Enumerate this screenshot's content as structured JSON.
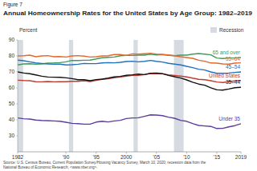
{
  "chart_data": {
    "type": "line",
    "figure_label": "Figure 7",
    "title": "Annual Homeownership Rates for the United States by Age Group: 1982–2019",
    "y_label": "Percent",
    "recession_label": "Recession",
    "recessions": [
      [
        1982,
        1982.9
      ],
      [
        1990.5,
        1991.2
      ],
      [
        2001.2,
        2001.9
      ],
      [
        2007.9,
        2009.5
      ]
    ],
    "source": [
      "Source: U.S. Census Bureau, Current Population Survey/Housing Vacancy Survey, March 10, 2020; recession data from the",
      "National Bureau of Economic Research, <www.nber.org>."
    ],
    "x": [
      1982,
      1983,
      1984,
      1985,
      1986,
      1987,
      1988,
      1989,
      1990,
      1991,
      1992,
      1993,
      1994,
      1995,
      1996,
      1997,
      1998,
      1999,
      2000,
      2001,
      2002,
      2003,
      2004,
      2005,
      2006,
      2007,
      2008,
      2009,
      2010,
      2011,
      2012,
      2013,
      2014,
      2015,
      2016,
      2017,
      2018,
      2019
    ],
    "xlim": [
      1982,
      2019
    ],
    "xticks": [
      1982,
      {
        "value": 1990,
        "label": "'90"
      },
      {
        "value": 1995,
        "label": "'95"
      },
      2000,
      {
        "value": 2005,
        "label": "'05"
      },
      {
        "value": 2010,
        "label": "'10"
      },
      {
        "value": 2015,
        "label": "'15"
      },
      2019
    ],
    "ylim": [
      20,
      90
    ],
    "yticks": [
      30,
      40,
      50,
      60,
      70,
      80,
      90
    ],
    "grid": false,
    "series": [
      {
        "name": "65 and over",
        "color": "#3d9a5c",
        "values": [
          74.4,
          75.0,
          75.1,
          74.8,
          75.0,
          75.5,
          75.6,
          75.8,
          76.3,
          77.2,
          77.1,
          77.3,
          77.4,
          78.1,
          78.9,
          79.1,
          79.3,
          80.1,
          80.4,
          80.3,
          80.5,
          80.5,
          81.1,
          80.6,
          80.9,
          80.4,
          80.1,
          80.5,
          80.5,
          81.1,
          81.5,
          81.1,
          80.7,
          78.7,
          78.4,
          78.7,
          78.7,
          79.0
        ]
      },
      {
        "name": "55–64",
        "color": "#e2692c",
        "values": [
          80.0,
          80.1,
          80.5,
          79.5,
          80.0,
          80.2,
          79.5,
          79.6,
          79.3,
          80.0,
          80.2,
          79.9,
          79.3,
          79.5,
          80.0,
          80.1,
          80.9,
          80.9,
          80.3,
          81.3,
          81.1,
          81.4,
          81.7,
          81.2,
          80.9,
          80.6,
          80.1,
          79.5,
          79.0,
          78.5,
          77.3,
          76.7,
          75.6,
          75.5,
          75.0,
          74.9,
          75.5,
          75.7
        ]
      },
      {
        "name": "45–54",
        "color": "#1f6fbf",
        "values": [
          77.4,
          77.0,
          76.3,
          75.6,
          75.3,
          75.0,
          74.8,
          74.9,
          74.4,
          74.5,
          74.8,
          75.3,
          75.2,
          75.2,
          75.6,
          75.8,
          75.7,
          76.0,
          76.5,
          76.7,
          76.3,
          76.6,
          77.2,
          76.6,
          76.2,
          75.4,
          74.9,
          74.4,
          73.5,
          72.7,
          71.7,
          71.2,
          70.0,
          69.1,
          69.1,
          69.3,
          69.7,
          70.0
        ]
      },
      {
        "name": "United States",
        "color": "#c23a2f",
        "values": [
          64.8,
          64.6,
          64.5,
          63.9,
          63.8,
          64.0,
          63.8,
          63.9,
          63.9,
          64.1,
          64.1,
          64.5,
          64.0,
          64.7,
          65.4,
          65.7,
          66.3,
          66.8,
          67.4,
          67.8,
          67.9,
          68.3,
          69.0,
          68.9,
          68.8,
          68.1,
          67.8,
          67.4,
          66.9,
          66.1,
          65.4,
          65.1,
          64.5,
          63.7,
          63.4,
          63.9,
          64.4,
          64.6
        ]
      },
      {
        "name": "35–44",
        "color": "#111111",
        "values": [
          70.0,
          69.3,
          68.9,
          68.1,
          67.3,
          66.8,
          66.7,
          66.6,
          66.3,
          65.8,
          65.1,
          65.1,
          64.5,
          65.2,
          65.5,
          66.1,
          66.9,
          67.2,
          67.9,
          68.2,
          68.6,
          68.3,
          69.2,
          69.3,
          68.9,
          67.8,
          67.0,
          66.2,
          65.0,
          63.6,
          62.4,
          61.7,
          60.1,
          58.8,
          58.6,
          59.3,
          60.1,
          60.4
        ]
      },
      {
        "name": "Under 35",
        "color": "#5b3d9a",
        "values": [
          41.2,
          40.7,
          40.5,
          39.9,
          39.6,
          39.5,
          39.3,
          39.1,
          38.5,
          37.8,
          37.6,
          37.3,
          37.3,
          38.6,
          39.1,
          38.7,
          39.3,
          39.7,
          40.8,
          41.2,
          41.3,
          42.2,
          43.1,
          43.0,
          42.6,
          41.7,
          41.0,
          39.7,
          39.1,
          37.7,
          36.5,
          36.2,
          35.9,
          34.6,
          34.7,
          35.6,
          36.4,
          37.6
        ]
      }
    ]
  }
}
